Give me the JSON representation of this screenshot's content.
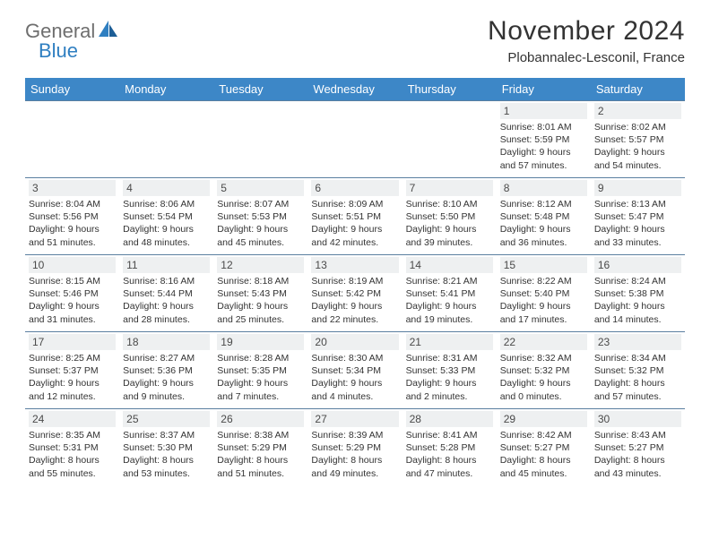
{
  "logo": {
    "part1": "General",
    "part2": "Blue"
  },
  "title": "November 2024",
  "location": "Plobannalec-Lesconil, France",
  "colors": {
    "header_bg": "#3d87c7",
    "header_fg": "#ffffff",
    "daynum_bg": "#eef0f1",
    "border": "#5a7fa0",
    "logo_gray": "#6e6e6e",
    "logo_blue": "#2f7fc1"
  },
  "days_of_week": [
    "Sunday",
    "Monday",
    "Tuesday",
    "Wednesday",
    "Thursday",
    "Friday",
    "Saturday"
  ],
  "weeks": [
    [
      null,
      null,
      null,
      null,
      null,
      {
        "n": "1",
        "sunrise": "8:01 AM",
        "sunset": "5:59 PM",
        "daylight": "9 hours and 57 minutes."
      },
      {
        "n": "2",
        "sunrise": "8:02 AM",
        "sunset": "5:57 PM",
        "daylight": "9 hours and 54 minutes."
      }
    ],
    [
      {
        "n": "3",
        "sunrise": "8:04 AM",
        "sunset": "5:56 PM",
        "daylight": "9 hours and 51 minutes."
      },
      {
        "n": "4",
        "sunrise": "8:06 AM",
        "sunset": "5:54 PM",
        "daylight": "9 hours and 48 minutes."
      },
      {
        "n": "5",
        "sunrise": "8:07 AM",
        "sunset": "5:53 PM",
        "daylight": "9 hours and 45 minutes."
      },
      {
        "n": "6",
        "sunrise": "8:09 AM",
        "sunset": "5:51 PM",
        "daylight": "9 hours and 42 minutes."
      },
      {
        "n": "7",
        "sunrise": "8:10 AM",
        "sunset": "5:50 PM",
        "daylight": "9 hours and 39 minutes."
      },
      {
        "n": "8",
        "sunrise": "8:12 AM",
        "sunset": "5:48 PM",
        "daylight": "9 hours and 36 minutes."
      },
      {
        "n": "9",
        "sunrise": "8:13 AM",
        "sunset": "5:47 PM",
        "daylight": "9 hours and 33 minutes."
      }
    ],
    [
      {
        "n": "10",
        "sunrise": "8:15 AM",
        "sunset": "5:46 PM",
        "daylight": "9 hours and 31 minutes."
      },
      {
        "n": "11",
        "sunrise": "8:16 AM",
        "sunset": "5:44 PM",
        "daylight": "9 hours and 28 minutes."
      },
      {
        "n": "12",
        "sunrise": "8:18 AM",
        "sunset": "5:43 PM",
        "daylight": "9 hours and 25 minutes."
      },
      {
        "n": "13",
        "sunrise": "8:19 AM",
        "sunset": "5:42 PM",
        "daylight": "9 hours and 22 minutes."
      },
      {
        "n": "14",
        "sunrise": "8:21 AM",
        "sunset": "5:41 PM",
        "daylight": "9 hours and 19 minutes."
      },
      {
        "n": "15",
        "sunrise": "8:22 AM",
        "sunset": "5:40 PM",
        "daylight": "9 hours and 17 minutes."
      },
      {
        "n": "16",
        "sunrise": "8:24 AM",
        "sunset": "5:38 PM",
        "daylight": "9 hours and 14 minutes."
      }
    ],
    [
      {
        "n": "17",
        "sunrise": "8:25 AM",
        "sunset": "5:37 PM",
        "daylight": "9 hours and 12 minutes."
      },
      {
        "n": "18",
        "sunrise": "8:27 AM",
        "sunset": "5:36 PM",
        "daylight": "9 hours and 9 minutes."
      },
      {
        "n": "19",
        "sunrise": "8:28 AM",
        "sunset": "5:35 PM",
        "daylight": "9 hours and 7 minutes."
      },
      {
        "n": "20",
        "sunrise": "8:30 AM",
        "sunset": "5:34 PM",
        "daylight": "9 hours and 4 minutes."
      },
      {
        "n": "21",
        "sunrise": "8:31 AM",
        "sunset": "5:33 PM",
        "daylight": "9 hours and 2 minutes."
      },
      {
        "n": "22",
        "sunrise": "8:32 AM",
        "sunset": "5:32 PM",
        "daylight": "9 hours and 0 minutes."
      },
      {
        "n": "23",
        "sunrise": "8:34 AM",
        "sunset": "5:32 PM",
        "daylight": "8 hours and 57 minutes."
      }
    ],
    [
      {
        "n": "24",
        "sunrise": "8:35 AM",
        "sunset": "5:31 PM",
        "daylight": "8 hours and 55 minutes."
      },
      {
        "n": "25",
        "sunrise": "8:37 AM",
        "sunset": "5:30 PM",
        "daylight": "8 hours and 53 minutes."
      },
      {
        "n": "26",
        "sunrise": "8:38 AM",
        "sunset": "5:29 PM",
        "daylight": "8 hours and 51 minutes."
      },
      {
        "n": "27",
        "sunrise": "8:39 AM",
        "sunset": "5:29 PM",
        "daylight": "8 hours and 49 minutes."
      },
      {
        "n": "28",
        "sunrise": "8:41 AM",
        "sunset": "5:28 PM",
        "daylight": "8 hours and 47 minutes."
      },
      {
        "n": "29",
        "sunrise": "8:42 AM",
        "sunset": "5:27 PM",
        "daylight": "8 hours and 45 minutes."
      },
      {
        "n": "30",
        "sunrise": "8:43 AM",
        "sunset": "5:27 PM",
        "daylight": "8 hours and 43 minutes."
      }
    ]
  ],
  "labels": {
    "sunrise": "Sunrise:",
    "sunset": "Sunset:",
    "daylight": "Daylight:"
  }
}
